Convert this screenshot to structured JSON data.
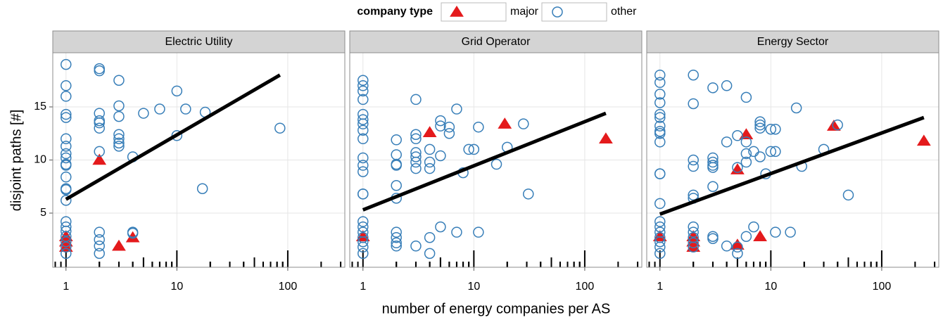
{
  "legend_title": "company type",
  "xlabel": "number of energy companies per AS",
  "ylabel": "disjoint paths [#]",
  "chart_data": [
    {
      "type": "scatter",
      "title": "Electric Utility",
      "log_x": true,
      "grid": true,
      "xlim": [
        0.76,
        327
      ],
      "xticks": [
        1,
        10,
        100
      ],
      "ylim": [
        -0.1,
        20.1
      ],
      "yticks": [
        5,
        10,
        15
      ],
      "series": [
        {
          "name": "major",
          "color": "#e41a1c",
          "marker": "triangle",
          "x": [
            1,
            1,
            1,
            2,
            3,
            4
          ],
          "values": [
            2.8,
            2.3,
            1.8,
            10,
            1.9,
            2.7
          ]
        },
        {
          "name": "other",
          "color": "#377eb8",
          "marker": "circle",
          "x": [
            1,
            1,
            1,
            1,
            1,
            1,
            1,
            1,
            1,
            1,
            1,
            1,
            1,
            1,
            1,
            1,
            1,
            1,
            1,
            1,
            1,
            1,
            2,
            2,
            2,
            2,
            2,
            2,
            2,
            2,
            2,
            2,
            2,
            3,
            3,
            3,
            3,
            3,
            3,
            3,
            4,
            4,
            4,
            5,
            7,
            10,
            10,
            12,
            18,
            17,
            85
          ],
          "values": [
            19,
            17,
            16,
            14.3,
            14,
            12,
            11.3,
            10.6,
            10.2,
            9.6,
            9.5,
            8.4,
            7.3,
            7.2,
            6.2,
            4.2,
            3.7,
            3.3,
            2.8,
            2.3,
            1.8,
            1.2,
            18.6,
            18.4,
            14.4,
            13.7,
            13.5,
            13,
            10.8,
            3.2,
            2.5,
            1.9,
            1.2,
            17.5,
            15.1,
            14.1,
            12.4,
            12,
            11.6,
            11.3,
            10.3,
            3.2,
            3.1,
            14.4,
            14.8,
            16.5,
            12.3,
            14.8,
            14.5,
            7.3,
            13
          ]
        }
      ],
      "fit": {
        "x": [
          1,
          85
        ],
        "values": [
          6.3,
          18
        ]
      }
    },
    {
      "type": "scatter",
      "title": "Grid Operator",
      "log_x": true,
      "grid": true,
      "xlim": [
        0.76,
        327
      ],
      "xticks": [
        1,
        10,
        100
      ],
      "ylim": [
        -0.1,
        20.1
      ],
      "yticks": [
        5,
        10,
        15
      ],
      "series": [
        {
          "name": "major",
          "color": "#e41a1c",
          "marker": "triangle",
          "x": [
            1,
            4,
            19,
            155
          ],
          "values": [
            2.8,
            12.6,
            13.4,
            12
          ]
        },
        {
          "name": "other",
          "color": "#377eb8",
          "marker": "circle",
          "x": [
            1,
            1,
            1,
            1,
            1,
            1,
            1,
            1,
            1,
            1,
            1,
            1,
            1,
            1,
            1,
            1,
            1,
            1,
            1,
            1,
            1,
            2,
            2,
            2,
            2,
            2,
            2,
            2,
            2,
            2,
            2,
            3,
            3,
            3,
            3,
            3,
            3,
            3,
            3,
            4,
            4,
            4,
            4,
            4,
            5,
            5,
            5,
            5,
            6,
            6,
            7,
            7,
            8,
            9,
            10,
            11,
            11,
            16,
            20,
            28,
            31
          ],
          "values": [
            17.5,
            17,
            16.5,
            15.7,
            14.3,
            13.8,
            13.4,
            12.8,
            12,
            10.2,
            9.5,
            8.9,
            6.8,
            6.8,
            4.2,
            3.7,
            3.2,
            2.7,
            2.3,
            1.8,
            1.2,
            11.9,
            10.5,
            9.6,
            9.5,
            7.6,
            6.4,
            3.2,
            2.7,
            2.2,
            1.9,
            15.7,
            12.4,
            12,
            10.7,
            10.3,
            9.8,
            9.2,
            1.9,
            11,
            9.8,
            9.2,
            2.7,
            1.2,
            13.7,
            13.2,
            10.4,
            3.7,
            13.1,
            12.5,
            14.8,
            3.2,
            8.8,
            11,
            11,
            13.1,
            3.2,
            9.6,
            11.2,
            13.4,
            6.8
          ]
        }
      ],
      "fit": {
        "x": [
          1,
          155
        ],
        "values": [
          5.3,
          14.4
        ]
      }
    },
    {
      "type": "scatter",
      "title": "Energy Sector",
      "log_x": true,
      "grid": true,
      "xlim": [
        0.76,
        327
      ],
      "xticks": [
        1,
        10,
        100
      ],
      "ylim": [
        -0.1,
        20.1
      ],
      "yticks": [
        5,
        10,
        15
      ],
      "series": [
        {
          "name": "major",
          "color": "#e41a1c",
          "marker": "triangle",
          "x": [
            1,
            2,
            2,
            2,
            5,
            5,
            6,
            8,
            37,
            240
          ],
          "values": [
            2.8,
            2.8,
            2.3,
            1.8,
            9.1,
            2,
            12.4,
            2.8,
            13.2,
            11.8
          ]
        },
        {
          "name": "other",
          "color": "#377eb8",
          "marker": "circle",
          "x": [
            1,
            1,
            1,
            1,
            1,
            1,
            1,
            1,
            1,
            1,
            1,
            1,
            1,
            1,
            1,
            1,
            1,
            1,
            1,
            1,
            2,
            2,
            2,
            2,
            2,
            2,
            2,
            2,
            2,
            2,
            2,
            3,
            3,
            3,
            3,
            3,
            3,
            3,
            3,
            4,
            4,
            4,
            5,
            5,
            5,
            5,
            6,
            6,
            6,
            6,
            6,
            7,
            7,
            8,
            8,
            8,
            8,
            9,
            10,
            10,
            11,
            11,
            11,
            15,
            17,
            19,
            30,
            40,
            50
          ],
          "values": [
            18,
            17.3,
            16.2,
            15.4,
            14.3,
            14,
            13.2,
            12.7,
            12.5,
            11.7,
            8.7,
            8.7,
            5.9,
            4.2,
            3.7,
            3.2,
            2.7,
            2.3,
            1.8,
            1.2,
            18,
            15.3,
            10,
            9.4,
            6.7,
            6.4,
            3.7,
            3.2,
            2.7,
            2.2,
            1.8,
            16.8,
            10.2,
            9.8,
            9.5,
            9.3,
            7.5,
            2.8,
            2.6,
            17,
            11.7,
            1.9,
            12.3,
            9.3,
            1.8,
            1.2,
            15.9,
            11.7,
            10.6,
            9.8,
            2.8,
            10.8,
            3.7,
            13.6,
            13.3,
            13,
            10.3,
            8.7,
            12.9,
            10.8,
            12.9,
            10.8,
            3.2,
            3.2,
            14.9,
            9.4,
            11,
            13.3,
            6.7
          ]
        }
      ],
      "fit": {
        "x": [
          1,
          240
        ],
        "values": [
          4.9,
          14
        ]
      }
    }
  ]
}
